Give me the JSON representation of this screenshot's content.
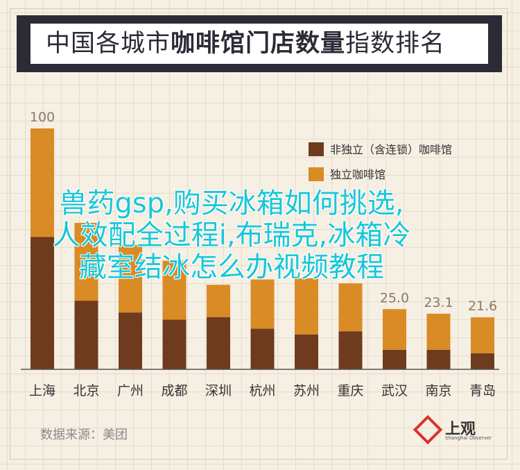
{
  "title": {
    "prefix": "中国各城市",
    "bold": "咖啡馆门店数量",
    "suffix": "指数排名"
  },
  "chart_data": {
    "type": "bar",
    "stacked": true,
    "categories": [
      "上海",
      "北京",
      "广州",
      "成都",
      "深圳",
      "杭州",
      "苏州",
      "重庆",
      "武汉",
      "南京",
      "青岛"
    ],
    "totals": [
      100,
      null,
      null,
      null,
      null,
      null,
      null,
      null,
      25.0,
      23.1,
      21.6
    ],
    "total_labels": [
      "100",
      "",
      "",
      "",
      "",
      "",
      "",
      "",
      "25.0",
      "23.1",
      "21.6"
    ],
    "series": [
      {
        "name": "非独立（含连锁）咖啡馆",
        "color": "#6e3b1f",
        "values": [
          55,
          28.5,
          23.6,
          20.6,
          21.7,
          16.9,
          14.5,
          15.8,
          8.1,
          8.1,
          6.7
        ]
      },
      {
        "name": "独立咖啡馆",
        "color": "#d98b25",
        "values": [
          45,
          32.3,
          28.1,
          24.5,
          13.4,
          20.4,
          23.3,
          19.9,
          16.9,
          15.0,
          14.9
        ]
      }
    ],
    "ylim": [
      0,
      100
    ],
    "legend_position": "top-right",
    "grid": false
  },
  "watermark": {
    "line1": "兽药gsp,购买冰箱如何挑选,",
    "line2": "人效配全过程i,布瑞克,冰箱冷",
    "line3": "藏室结冰怎么办视频教程"
  },
  "footer": {
    "source": "数据来源：美团"
  },
  "logo": {
    "name": "上观",
    "sub": "Shanghai Observer"
  }
}
